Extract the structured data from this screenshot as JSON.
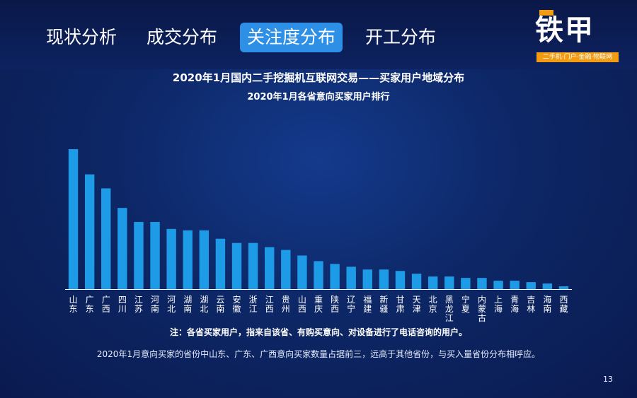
{
  "header": {
    "tabs": [
      {
        "label": "现状分析",
        "active": false
      },
      {
        "label": "成交分布",
        "active": false
      },
      {
        "label": "关注度分布",
        "active": true
      },
      {
        "label": "开工分布",
        "active": false
      }
    ]
  },
  "logo": {
    "text": "铁甲",
    "tagline": "二手机·门户·金融·物联网"
  },
  "colors": {
    "bar": "#1e9be6",
    "accent": "#2d8fe6",
    "logo_orange": "#f39c12"
  },
  "chart_data": {
    "type": "bar",
    "title": "2020年1月国内二手挖掘机互联网交易——买家用户地域分布",
    "subtitle": "2020年1月各省意向买家用户排行",
    "categories": [
      "山东",
      "广东",
      "广西",
      "四川",
      "江苏",
      "河南",
      "河北",
      "湖南",
      "湖北",
      "云南",
      "安徽",
      "浙江",
      "江西",
      "贵州",
      "山西",
      "重庆",
      "陕西",
      "辽宁",
      "福建",
      "新疆",
      "甘肃",
      "天津",
      "北京",
      "黑龙江",
      "宁夏",
      "内蒙古",
      "上海",
      "青海",
      "吉林",
      "海南",
      "西藏"
    ],
    "values": [
      100,
      82,
      72,
      58,
      48,
      48,
      43,
      42,
      42,
      36,
      33,
      33,
      30,
      28,
      24,
      20,
      18,
      16,
      14,
      14,
      13,
      11,
      9,
      9,
      8,
      8,
      6,
      6,
      5,
      4,
      2
    ],
    "ylim": [
      0,
      100
    ],
    "grid": false,
    "legend": "none"
  },
  "note": "注：各省买家用户，指来自该省、有购买意向、对设备进行了电话咨询的用户。",
  "summary": "2020年1月意向买家的省份中山东、广东、广西意向买家数量占据前三，远高于其他省份，与买入量省份分布相呼应。",
  "page_number": "13"
}
